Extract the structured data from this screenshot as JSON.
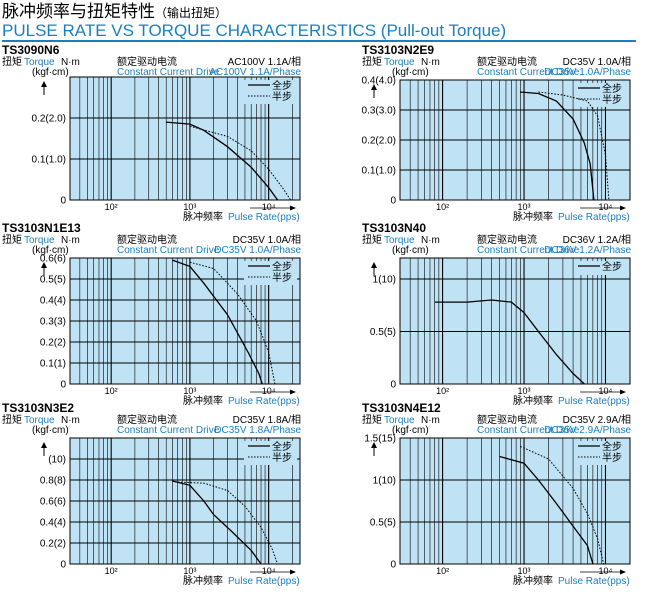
{
  "header": {
    "title_cn": "脉冲频率与扭矩特性",
    "title_cn_sub": "（输出扭矩）",
    "title_en": "PULSE RATE VS TORQUE CHARACTERISTICS (Pull-out Torque)"
  },
  "common": {
    "torque_cn": "扭矩",
    "torque_en": "Torque",
    "torque_unit": "N·m",
    "torque_unit2": "(kgf·cm)",
    "drive_cn": "额定驱动电流",
    "drive_en": "Constant Current Drive",
    "xlabel_cn": "脉冲频率",
    "xlabel_en": "Pulse Rate(pps)",
    "legend_full": "全步",
    "legend_half": "半步",
    "x_ticks": [
      "10²",
      "10³",
      "10⁴"
    ]
  },
  "colors": {
    "plot_bg": "#bfe3f5",
    "blue_text": "#1a7fc1",
    "grid": "#000000"
  },
  "chart_data": [
    {
      "type": "line",
      "model": "TS3090N6",
      "spec_cn": "AC100V 1.1A/相",
      "spec_en": "AC100V 1.1A/Phase",
      "xscale": "log",
      "xlim": [
        30,
        25000
      ],
      "ylim": [
        0,
        0.3
      ],
      "ytick_labels": [
        {
          "v": 0,
          "t": "0"
        },
        {
          "v": 0.1,
          "t": "0.1(1.0)"
        },
        {
          "v": 0.2,
          "t": "0.2(2.0)"
        }
      ],
      "legend": [
        "full",
        "half"
      ],
      "series": [
        {
          "style": "full",
          "points": [
            [
              500,
              0.19
            ],
            [
              1000,
              0.185
            ],
            [
              1500,
              0.17
            ],
            [
              3000,
              0.13
            ],
            [
              6000,
              0.08
            ],
            [
              10000,
              0.03
            ],
            [
              13000,
              0
            ]
          ]
        },
        {
          "style": "half",
          "points": [
            [
              1000,
              0.18
            ],
            [
              3000,
              0.155
            ],
            [
              6000,
              0.12
            ],
            [
              10000,
              0.075
            ],
            [
              15000,
              0.03
            ],
            [
              19000,
              0
            ]
          ]
        }
      ]
    },
    {
      "type": "line",
      "model": "TS3103N2E9",
      "spec_cn": "DC35V 1.0A/相",
      "spec_en": "DC35V 1.0A/Phase",
      "xscale": "log",
      "xlim": [
        30,
        20000
      ],
      "ylim": [
        0,
        0.4
      ],
      "ytick_labels": [
        {
          "v": 0,
          "t": "0"
        },
        {
          "v": 0.1,
          "t": "0.1(1.0)"
        },
        {
          "v": 0.2,
          "t": "0.2(2.0)"
        },
        {
          "v": 0.3,
          "t": "0.3(3.0)"
        },
        {
          "v": 0.4,
          "t": "0.4(4.0)"
        }
      ],
      "legend": [
        "full",
        "half"
      ],
      "series": [
        {
          "style": "full",
          "points": [
            [
              900,
              0.36
            ],
            [
              1500,
              0.355
            ],
            [
              2500,
              0.33
            ],
            [
              4000,
              0.27
            ],
            [
              5500,
              0.19
            ],
            [
              6500,
              0.12
            ],
            [
              7200,
              0
            ]
          ]
        },
        {
          "style": "half",
          "points": [
            [
              1500,
              0.36
            ],
            [
              3000,
              0.35
            ],
            [
              6000,
              0.33
            ],
            [
              8000,
              0.28
            ],
            [
              10000,
              0.15
            ],
            [
              11000,
              0
            ]
          ]
        }
      ]
    },
    {
      "type": "line",
      "model": "TS3103N1E13",
      "spec_cn": "DC35V 1.0A/相",
      "spec_en": "DC35V 1.0A/Phase",
      "xscale": "log",
      "xlim": [
        30,
        25000
      ],
      "ylim": [
        0,
        0.6
      ],
      "ytick_labels": [
        {
          "v": 0,
          "t": "0"
        },
        {
          "v": 0.1,
          "t": "0.1(1)"
        },
        {
          "v": 0.2,
          "t": "0.2(2)"
        },
        {
          "v": 0.3,
          "t": "0.3(3)"
        },
        {
          "v": 0.4,
          "t": "0.4(4)"
        },
        {
          "v": 0.5,
          "t": "0.5(5)"
        },
        {
          "v": 0.6,
          "t": "0.6(6)"
        }
      ],
      "legend": [
        "full",
        "half"
      ],
      "series": [
        {
          "style": "full",
          "points": [
            [
              600,
              0.59
            ],
            [
              1000,
              0.56
            ],
            [
              1500,
              0.48
            ],
            [
              3000,
              0.33
            ],
            [
              5500,
              0.15
            ],
            [
              7500,
              0.05
            ],
            [
              8300,
              0
            ]
          ]
        },
        {
          "style": "half",
          "points": [
            [
              1000,
              0.58
            ],
            [
              2000,
              0.55
            ],
            [
              4000,
              0.43
            ],
            [
              7000,
              0.3
            ],
            [
              10000,
              0.15
            ],
            [
              12000,
              0
            ]
          ]
        }
      ]
    },
    {
      "type": "line",
      "model": "TS3103N40",
      "spec_cn": "DC36V 1.2A/相",
      "spec_en": "DC36V 1.2A/Phase",
      "xscale": "log",
      "xlim": [
        30,
        20000
      ],
      "ylim": [
        0,
        1.2
      ],
      "ytick_labels": [
        {
          "v": 0,
          "t": "0"
        },
        {
          "v": 0.5,
          "t": "0.5(5)"
        },
        {
          "v": 1.0,
          "t": "1(10)"
        }
      ],
      "legend": [
        "full"
      ],
      "series": [
        {
          "style": "full",
          "points": [
            [
              80,
              0.78
            ],
            [
              200,
              0.78
            ],
            [
              400,
              0.8
            ],
            [
              700,
              0.78
            ],
            [
              1000,
              0.68
            ],
            [
              1500,
              0.5
            ],
            [
              2500,
              0.28
            ],
            [
              4000,
              0.1
            ],
            [
              5500,
              0
            ]
          ]
        }
      ]
    },
    {
      "type": "line",
      "model": "TS3103N3E2",
      "spec_cn": "DC35V 1.8A/相",
      "spec_en": "DC35V 1.8A/Phase",
      "xscale": "log",
      "xlim": [
        30,
        25000
      ],
      "ylim": [
        0,
        1.2
      ],
      "ytick_labels": [
        {
          "v": 0,
          "t": "0"
        },
        {
          "v": 0.2,
          "t": "0.2(2)"
        },
        {
          "v": 0.4,
          "t": "0.4(4)"
        },
        {
          "v": 0.6,
          "t": "0.6(6)"
        },
        {
          "v": 0.8,
          "t": "0.8(8)"
        },
        {
          "v": 1.0,
          "t": "(10)"
        }
      ],
      "legend": [
        "full",
        "half"
      ],
      "series": [
        {
          "style": "full",
          "points": [
            [
              600,
              0.79
            ],
            [
              1000,
              0.75
            ],
            [
              1500,
              0.6
            ],
            [
              2000,
              0.47
            ],
            [
              3500,
              0.3
            ],
            [
              6000,
              0.13
            ],
            [
              8000,
              0
            ]
          ]
        },
        {
          "style": "half",
          "points": [
            [
              700,
              0.78
            ],
            [
              1500,
              0.77
            ],
            [
              3000,
              0.7
            ],
            [
              5000,
              0.55
            ],
            [
              8000,
              0.35
            ],
            [
              11000,
              0.15
            ],
            [
              13000,
              0
            ]
          ]
        }
      ]
    },
    {
      "type": "line",
      "model": "TS3103N4E12",
      "spec_cn": "DC35V 2.9A/相",
      "spec_en": "DC35V 2.9A/Phase",
      "xscale": "log",
      "xlim": [
        30,
        20000
      ],
      "ylim": [
        0,
        1.5
      ],
      "ytick_labels": [
        {
          "v": 0,
          "t": "0"
        },
        {
          "v": 0.5,
          "t": "0.5(5)"
        },
        {
          "v": 1.0,
          "t": "1(10)"
        },
        {
          "v": 1.5,
          "t": "1.5(15)"
        }
      ],
      "legend": [
        "full",
        "half"
      ],
      "series": [
        {
          "style": "full",
          "points": [
            [
              500,
              1.28
            ],
            [
              1000,
              1.2
            ],
            [
              1500,
              1.0
            ],
            [
              2500,
              0.72
            ],
            [
              4000,
              0.45
            ],
            [
              6000,
              0.22
            ],
            [
              7000,
              0
            ]
          ]
        },
        {
          "style": "half",
          "points": [
            [
              900,
              1.4
            ],
            [
              2000,
              1.25
            ],
            [
              4000,
              0.9
            ],
            [
              6000,
              0.6
            ],
            [
              8000,
              0.3
            ],
            [
              9500,
              0
            ]
          ]
        }
      ]
    }
  ]
}
